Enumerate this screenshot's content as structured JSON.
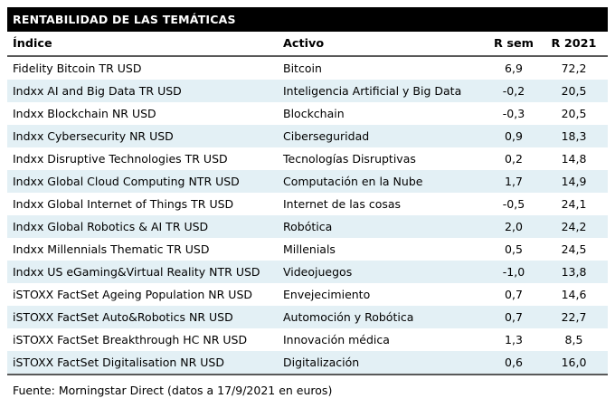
{
  "header": {
    "title": "RENTABILIDAD DE LAS TEMÁTICAS"
  },
  "table": {
    "columns": [
      "Índice",
      "Activo",
      "R sem",
      "R 2021"
    ],
    "rows": [
      [
        "Fidelity Bitcoin TR USD",
        "Bitcoin",
        "6,9",
        "72,2"
      ],
      [
        "Indxx AI and Big Data TR USD",
        "Inteligencia Artificial y Big Data",
        "-0,2",
        "20,5"
      ],
      [
        "Indxx Blockchain NR USD",
        "Blockchain",
        "-0,3",
        "20,5"
      ],
      [
        "Indxx Cybersecurity NR USD",
        "Ciberseguridad",
        "0,9",
        "18,3"
      ],
      [
        "Indxx Disruptive Technologies TR USD",
        "Tecnologías Disruptivas",
        "0,2",
        "14,8"
      ],
      [
        "Indxx Global Cloud Computing NTR USD",
        "Computación en la Nube",
        "1,7",
        "14,9"
      ],
      [
        "Indxx Global Internet of Things TR USD",
        "Internet de las cosas",
        "-0,5",
        "24,1"
      ],
      [
        "Indxx Global Robotics & AI TR USD",
        "Robótica",
        "2,0",
        "24,2"
      ],
      [
        "Indxx Millennials Thematic TR USD",
        "Millenials",
        "0,5",
        "24,5"
      ],
      [
        "Indxx US eGaming&Virtual Reality NTR USD",
        "Videojuegos",
        "-1,0",
        "13,8"
      ],
      [
        "iSTOXX FactSet Ageing Population NR USD",
        "Envejecimiento",
        "0,7",
        "14,6"
      ],
      [
        "iSTOXX FactSet Auto&Robotics NR USD",
        "Automoción y Robótica",
        "0,7",
        "22,7"
      ],
      [
        "iSTOXX FactSet Breakthrough HC NR USD",
        "Innovación médica",
        "1,3",
        "8,5"
      ],
      [
        "iSTOXX FactSet Digitalisation NR USD",
        "Digitalización",
        "0,6",
        "16,0"
      ]
    ]
  },
  "footer": {
    "source_note": "Fuente: Morningstar Direct (datos a 17/9/2021 en euros)"
  },
  "colors": {
    "band_bg": "#000000",
    "band_text": "#ffffff",
    "stripe": "#e3f0f5",
    "rule": "#595959",
    "text": "#000000"
  }
}
